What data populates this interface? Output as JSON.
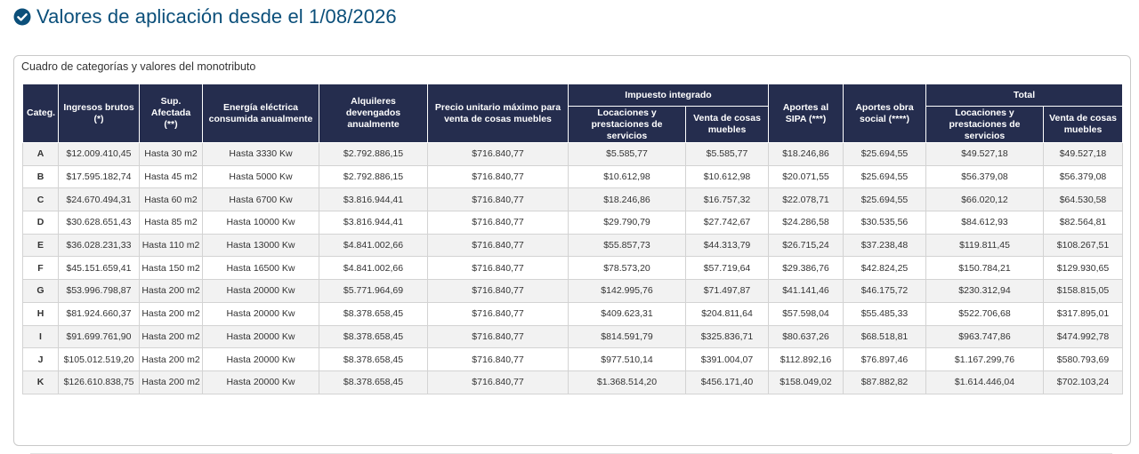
{
  "header": {
    "icon": "check-circle-icon",
    "title": "Valores de aplicación desde el 1/08/2026",
    "accent_color": "#0b4f7a"
  },
  "panel": {
    "title": "Cuadro de categorías y valores del monotributo"
  },
  "table": {
    "header_color": "#252d4e",
    "group_headers": {
      "impuesto": "Impuesto integrado",
      "total": "Total"
    },
    "columns": {
      "categ": "Categ.",
      "ingresos": "Ingresos brutos (*)",
      "sup": "Sup. Afectada (**)",
      "energia": "Energía eléctrica consumida anualmente",
      "alquileres": "Alquileres devengados anualmente",
      "precio": "Precio unitario máximo para venta de cosas muebles",
      "imp_locaciones": "Locaciones y prestaciones de servicios",
      "imp_venta": "Venta de cosas muebles",
      "sipa": "Aportes al SIPA (***)",
      "obra_social": "Aportes obra social (****)",
      "tot_locaciones": "Locaciones y prestaciones de servicios",
      "tot_venta": "Venta de cosas muebles"
    },
    "rows": [
      [
        "A",
        "$12.009.410,45",
        "Hasta 30 m2",
        "Hasta 3330 Kw",
        "$2.792.886,15",
        "$716.840,77",
        "$5.585,77",
        "$5.585,77",
        "$18.246,86",
        "$25.694,55",
        "$49.527,18",
        "$49.527,18"
      ],
      [
        "B",
        "$17.595.182,74",
        "Hasta 45 m2",
        "Hasta 5000 Kw",
        "$2.792.886,15",
        "$716.840,77",
        "$10.612,98",
        "$10.612,98",
        "$20.071,55",
        "$25.694,55",
        "$56.379,08",
        "$56.379,08"
      ],
      [
        "C",
        "$24.670.494,31",
        "Hasta 60 m2",
        "Hasta 6700 Kw",
        "$3.816.944,41",
        "$716.840,77",
        "$18.246,86",
        "$16.757,32",
        "$22.078,71",
        "$25.694,55",
        "$66.020,12",
        "$64.530,58"
      ],
      [
        "D",
        "$30.628.651,43",
        "Hasta 85 m2",
        "Hasta 10000 Kw",
        "$3.816.944,41",
        "$716.840,77",
        "$29.790,79",
        "$27.742,67",
        "$24.286,58",
        "$30.535,56",
        "$84.612,93",
        "$82.564,81"
      ],
      [
        "E",
        "$36.028.231,33",
        "Hasta 110 m2",
        "Hasta 13000 Kw",
        "$4.841.002,66",
        "$716.840,77",
        "$55.857,73",
        "$44.313,79",
        "$26.715,24",
        "$37.238,48",
        "$119.811,45",
        "$108.267,51"
      ],
      [
        "F",
        "$45.151.659,41",
        "Hasta 150 m2",
        "Hasta 16500 Kw",
        "$4.841.002,66",
        "$716.840,77",
        "$78.573,20",
        "$57.719,64",
        "$29.386,76",
        "$42.824,25",
        "$150.784,21",
        "$129.930,65"
      ],
      [
        "G",
        "$53.996.798,87",
        "Hasta 200 m2",
        "Hasta 20000 Kw",
        "$5.771.964,69",
        "$716.840,77",
        "$142.995,76",
        "$71.497,87",
        "$41.141,46",
        "$46.175,72",
        "$230.312,94",
        "$158.815,05"
      ],
      [
        "H",
        "$81.924.660,37",
        "Hasta 200 m2",
        "Hasta 20000 Kw",
        "$8.378.658,45",
        "$716.840,77",
        "$409.623,31",
        "$204.811,64",
        "$57.598,04",
        "$55.485,33",
        "$522.706,68",
        "$317.895,01"
      ],
      [
        "I",
        "$91.699.761,90",
        "Hasta 200 m2",
        "Hasta 20000 Kw",
        "$8.378.658,45",
        "$716.840,77",
        "$814.591,79",
        "$325.836,71",
        "$80.637,26",
        "$68.518,81",
        "$963.747,86",
        "$474.992,78"
      ],
      [
        "J",
        "$105.012.519,20",
        "Hasta 200 m2",
        "Hasta 20000 Kw",
        "$8.378.658,45",
        "$716.840,77",
        "$977.510,14",
        "$391.004,07",
        "$112.892,16",
        "$76.897,46",
        "$1.167.299,76",
        "$580.793,69"
      ],
      [
        "K",
        "$126.610.838,75",
        "Hasta 200 m2",
        "Hasta 20000 Kw",
        "$8.378.658,45",
        "$716.840,77",
        "$1.368.514,20",
        "$456.171,40",
        "$158.049,02",
        "$87.882,82",
        "$1.614.446,04",
        "$702.103,24"
      ]
    ]
  }
}
